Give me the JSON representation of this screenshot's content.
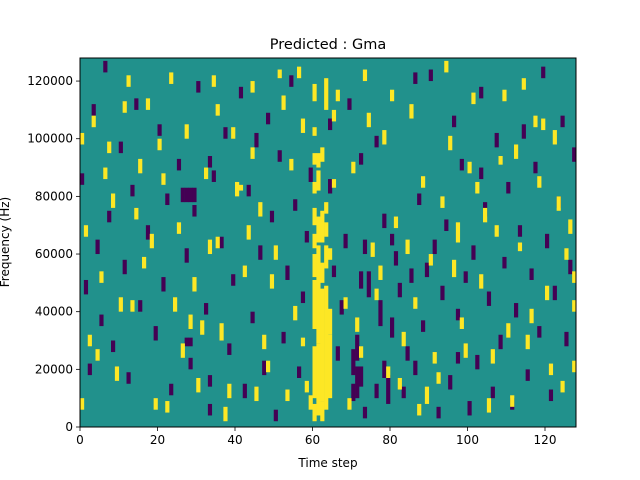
{
  "chart_data": {
    "type": "heatmap",
    "title": "Predicted : Gma",
    "xlabel": "Time step",
    "ylabel": "Frequency (Hz)",
    "xlim": [
      0,
      128
    ],
    "ylim": [
      0,
      128000
    ],
    "x_ticks": [
      0,
      20,
      40,
      60,
      80,
      100,
      120
    ],
    "y_ticks": [
      0,
      20000,
      40000,
      60000,
      80000,
      100000,
      120000
    ],
    "x_tick_labels": [
      "0",
      "20",
      "40",
      "60",
      "80",
      "100",
      "120"
    ],
    "y_tick_labels": [
      "0",
      "20000",
      "40000",
      "60000",
      "80000",
      "100000",
      "120000"
    ],
    "grid": false,
    "legend": "none",
    "n_time_steps": 128,
    "n_freq_bins": 128,
    "values_legend": {
      "-1": "low (purple)",
      "0": "background (teal)",
      "1": "high (yellow)"
    },
    "colors": {
      "low": "#440154",
      "mid": "#21918c",
      "high": "#fde725"
    },
    "background_value": 0,
    "high_cells": [
      [
        60,
        2,
        7
      ],
      [
        60,
        10,
        27
      ],
      [
        60,
        34,
        50
      ],
      [
        60,
        52,
        59
      ],
      [
        60,
        62,
        66
      ],
      [
        60,
        70,
        75
      ],
      [
        60,
        81,
        84
      ],
      [
        60,
        91,
        94
      ],
      [
        60,
        101,
        103
      ],
      [
        60,
        113,
        118
      ],
      [
        61,
        4,
        28
      ],
      [
        61,
        29,
        62
      ],
      [
        61,
        64,
        72
      ],
      [
        61,
        82,
        88
      ],
      [
        61,
        90,
        94
      ],
      [
        62,
        2,
        8
      ],
      [
        62,
        9,
        47
      ],
      [
        62,
        50,
        56
      ],
      [
        62,
        64,
        74
      ],
      [
        62,
        92,
        96
      ],
      [
        63,
        6,
        48
      ],
      [
        63,
        55,
        62
      ],
      [
        63,
        66,
        70
      ],
      [
        63,
        74,
        77
      ],
      [
        63,
        110,
        120
      ],
      [
        64,
        10,
        31
      ],
      [
        64,
        32,
        40
      ],
      [
        64,
        58,
        61
      ],
      [
        58,
        12,
        15
      ],
      [
        59,
        6,
        10
      ],
      [
        57,
        28,
        30
      ],
      [
        65,
        106,
        109
      ],
      [
        9,
        16,
        20
      ],
      [
        10,
        40,
        44
      ],
      [
        16,
        55,
        58
      ],
      [
        18,
        62,
        66
      ],
      [
        24,
        40,
        44
      ],
      [
        26,
        24,
        28
      ],
      [
        30,
        12,
        16
      ],
      [
        33,
        60,
        64
      ],
      [
        36,
        30,
        35
      ],
      [
        40,
        80,
        84
      ],
      [
        41,
        82,
        83
      ],
      [
        46,
        73,
        77
      ],
      [
        52,
        110,
        114
      ],
      [
        65,
        83,
        85
      ],
      [
        68,
        41,
        44
      ],
      [
        71,
        33,
        37
      ],
      [
        74,
        104,
        108
      ],
      [
        77,
        51,
        55
      ],
      [
        82,
        13,
        16
      ],
      [
        84,
        60,
        64
      ],
      [
        89,
        8,
        13
      ],
      [
        93,
        76,
        79
      ],
      [
        96,
        52,
        57
      ],
      [
        97,
        64,
        70
      ],
      [
        99,
        24,
        28
      ],
      [
        100,
        88,
        91
      ],
      [
        103,
        48,
        52
      ],
      [
        106,
        22,
        26
      ],
      [
        108,
        91,
        93
      ],
      [
        110,
        31,
        35
      ],
      [
        113,
        61,
        63
      ],
      [
        116,
        36,
        40
      ],
      [
        118,
        83,
        86
      ],
      [
        120,
        44,
        48
      ],
      [
        122,
        98,
        102
      ],
      [
        124,
        12,
        15
      ],
      [
        126,
        67,
        71
      ],
      [
        127,
        50,
        53
      ],
      [
        3,
        104,
        107
      ],
      [
        6,
        86,
        89
      ],
      [
        12,
        118,
        121
      ],
      [
        14,
        72,
        75
      ],
      [
        20,
        96,
        99
      ],
      [
        22,
        5,
        8
      ],
      [
        28,
        34,
        38
      ],
      [
        34,
        118,
        121
      ],
      [
        38,
        10,
        14
      ],
      [
        44,
        93,
        96
      ],
      [
        48,
        19,
        22
      ],
      [
        50,
        58,
        62
      ],
      [
        54,
        89,
        92
      ],
      [
        56,
        121,
        124
      ],
      [
        80,
        113,
        116
      ],
      [
        86,
        41,
        44
      ],
      [
        91,
        22,
        25
      ],
      [
        95,
        96,
        100
      ],
      [
        101,
        112,
        115
      ],
      [
        104,
        71,
        75
      ],
      [
        111,
        7,
        10
      ],
      [
        114,
        117,
        120
      ],
      [
        117,
        104,
        107
      ],
      [
        121,
        18,
        21
      ],
      [
        123,
        75,
        79
      ],
      [
        125,
        58,
        61
      ],
      [
        2,
        28,
        31
      ],
      [
        5,
        50,
        53
      ],
      [
        8,
        76,
        80
      ],
      [
        11,
        109,
        112
      ],
      [
        15,
        88,
        92
      ],
      [
        19,
        6,
        9
      ],
      [
        23,
        119,
        122
      ],
      [
        27,
        100,
        104
      ],
      [
        29,
        47,
        51
      ],
      [
        31,
        32,
        36
      ],
      [
        35,
        62,
        65
      ],
      [
        37,
        2,
        6
      ],
      [
        39,
        100,
        103
      ],
      [
        43,
        65,
        69
      ],
      [
        47,
        27,
        31
      ],
      [
        49,
        48,
        52
      ],
      [
        51,
        121,
        123
      ],
      [
        53,
        9,
        12
      ],
      [
        55,
        37,
        41
      ],
      [
        57,
        102,
        106
      ],
      [
        66,
        113,
        116
      ],
      [
        69,
        6,
        9
      ],
      [
        70,
        88,
        91
      ],
      [
        72,
        24,
        27
      ],
      [
        73,
        120,
        123
      ],
      [
        75,
        59,
        63
      ],
      [
        76,
        44,
        47
      ],
      [
        78,
        98,
        102
      ],
      [
        79,
        17,
        20
      ],
      [
        81,
        69,
        72
      ],
      [
        83,
        28,
        32
      ],
      [
        85,
        107,
        111
      ],
      [
        87,
        4,
        7
      ],
      [
        88,
        83,
        86
      ],
      [
        90,
        56,
        59
      ],
      [
        92,
        15,
        18
      ],
      [
        94,
        123,
        126
      ],
      [
        98,
        34,
        37
      ],
      [
        102,
        81,
        84
      ],
      [
        105,
        5,
        9
      ],
      [
        107,
        66,
        69
      ],
      [
        109,
        113,
        116
      ],
      [
        112,
        93,
        97
      ],
      [
        115,
        27,
        31
      ],
      [
        119,
        103,
        106
      ],
      [
        1,
        66,
        69
      ],
      [
        4,
        23,
        26
      ],
      [
        7,
        95,
        98
      ],
      [
        13,
        40,
        43
      ],
      [
        17,
        110,
        113
      ],
      [
        21,
        84,
        87
      ],
      [
        25,
        67,
        70
      ],
      [
        32,
        86,
        89
      ],
      [
        42,
        52,
        55
      ],
      [
        45,
        9,
        13
      ],
      [
        0,
        6,
        9
      ],
      [
        0,
        98,
        101
      ],
      [
        127,
        40,
        43
      ],
      [
        127,
        19,
        22
      ],
      [
        35,
        108,
        111
      ],
      [
        44,
        116,
        119
      ]
    ],
    "low_cells": [
      [
        70,
        9,
        14
      ],
      [
        70,
        18,
        26
      ],
      [
        71,
        10,
        20
      ],
      [
        71,
        23,
        31
      ],
      [
        72,
        14,
        20
      ],
      [
        72,
        48,
        53
      ],
      [
        73,
        3,
        6
      ],
      [
        73,
        60,
        64
      ],
      [
        74,
        45,
        53
      ],
      [
        76,
        10,
        14
      ],
      [
        77,
        35,
        43
      ],
      [
        78,
        17,
        22
      ],
      [
        78,
        69,
        73
      ],
      [
        79,
        8,
        17
      ],
      [
        80,
        31,
        37
      ],
      [
        80,
        63,
        66
      ],
      [
        81,
        56,
        60
      ],
      [
        82,
        45,
        49
      ],
      [
        83,
        10,
        13
      ],
      [
        84,
        23,
        27
      ],
      [
        85,
        50,
        54
      ],
      [
        86,
        18,
        22
      ],
      [
        87,
        77,
        80
      ],
      [
        88,
        33,
        36
      ],
      [
        89,
        52,
        56
      ],
      [
        90,
        120,
        123
      ],
      [
        91,
        60,
        64
      ],
      [
        92,
        3,
        6
      ],
      [
        93,
        44,
        48
      ],
      [
        94,
        68,
        71
      ],
      [
        95,
        13,
        17
      ],
      [
        96,
        104,
        107
      ],
      [
        97,
        37,
        40
      ],
      [
        98,
        89,
        92
      ],
      [
        99,
        50,
        53
      ],
      [
        100,
        4,
        8
      ],
      [
        101,
        58,
        62
      ],
      [
        102,
        20,
        24
      ],
      [
        103,
        114,
        117
      ],
      [
        104,
        73,
        77
      ],
      [
        105,
        42,
        46
      ],
      [
        106,
        10,
        13
      ],
      [
        107,
        97,
        101
      ],
      [
        108,
        27,
        31
      ],
      [
        109,
        55,
        58
      ],
      [
        110,
        81,
        84
      ],
      [
        111,
        6,
        9
      ],
      [
        112,
        38,
        42
      ],
      [
        113,
        66,
        69
      ],
      [
        114,
        100,
        104
      ],
      [
        115,
        16,
        19
      ],
      [
        116,
        51,
        54
      ],
      [
        117,
        88,
        91
      ],
      [
        118,
        31,
        34
      ],
      [
        119,
        121,
        124
      ],
      [
        120,
        62,
        66
      ],
      [
        121,
        9,
        12
      ],
      [
        122,
        44,
        48
      ],
      [
        123,
        76,
        79
      ],
      [
        124,
        104,
        107
      ],
      [
        125,
        28,
        32
      ],
      [
        126,
        53,
        57
      ],
      [
        127,
        92,
        96
      ],
      [
        0,
        84,
        87
      ],
      [
        1,
        46,
        50
      ],
      [
        2,
        18,
        21
      ],
      [
        3,
        108,
        111
      ],
      [
        4,
        60,
        64
      ],
      [
        5,
        35,
        38
      ],
      [
        6,
        123,
        126
      ],
      [
        7,
        71,
        74
      ],
      [
        8,
        26,
        29
      ],
      [
        10,
        95,
        98
      ],
      [
        11,
        53,
        57
      ],
      [
        12,
        15,
        18
      ],
      [
        13,
        80,
        83
      ],
      [
        14,
        110,
        113
      ],
      [
        15,
        40,
        43
      ],
      [
        17,
        65,
        69
      ],
      [
        19,
        30,
        34
      ],
      [
        20,
        101,
        104
      ],
      [
        21,
        47,
        51
      ],
      [
        22,
        77,
        80
      ],
      [
        23,
        11,
        14
      ],
      [
        25,
        89,
        92
      ],
      [
        27,
        57,
        61
      ],
      [
        28,
        20,
        23
      ],
      [
        29,
        73,
        76
      ],
      [
        30,
        116,
        119
      ],
      [
        32,
        39,
        42
      ],
      [
        33,
        4,
        7
      ],
      [
        34,
        85,
        88
      ],
      [
        36,
        62,
        65
      ],
      [
        37,
        100,
        103
      ],
      [
        38,
        25,
        28
      ],
      [
        39,
        49,
        52
      ],
      [
        41,
        114,
        117
      ],
      [
        42,
        10,
        14
      ],
      [
        43,
        80,
        83
      ],
      [
        44,
        36,
        39
      ],
      [
        45,
        97,
        101
      ],
      [
        46,
        58,
        62
      ],
      [
        47,
        18,
        22
      ],
      [
        48,
        105,
        108
      ],
      [
        49,
        71,
        74
      ],
      [
        50,
        2,
        5
      ],
      [
        51,
        92,
        95
      ],
      [
        52,
        29,
        32
      ],
      [
        53,
        51,
        55
      ],
      [
        54,
        118,
        121
      ],
      [
        55,
        75,
        78
      ],
      [
        56,
        17,
        20
      ],
      [
        57,
        43,
        46
      ],
      [
        58,
        64,
        67
      ],
      [
        59,
        85,
        89
      ],
      [
        64,
        103,
        106
      ],
      [
        65,
        52,
        55
      ],
      [
        66,
        23,
        27
      ],
      [
        67,
        39,
        43
      ],
      [
        68,
        62,
        66
      ],
      [
        69,
        110,
        113
      ],
      [
        26,
        78,
        82
      ],
      [
        27,
        78,
        82
      ],
      [
        28,
        78,
        82
      ],
      [
        29,
        78,
        82
      ],
      [
        28,
        28,
        30
      ],
      [
        27,
        28,
        30
      ],
      [
        33,
        14,
        17
      ],
      [
        33,
        90,
        93
      ],
      [
        64,
        81,
        85
      ],
      [
        72,
        91,
        94
      ],
      [
        76,
        97,
        100
      ],
      [
        86,
        119,
        122
      ],
      [
        97,
        22,
        25
      ],
      [
        103,
        86,
        89
      ]
    ]
  }
}
